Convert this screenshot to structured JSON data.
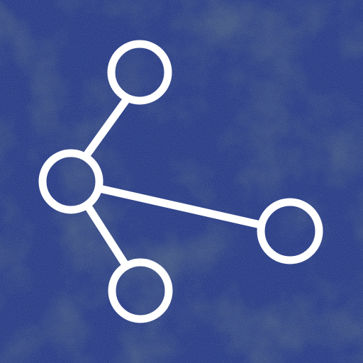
{
  "icon": {
    "name": "share-icon",
    "description_label": "",
    "background_color": "#2c3f86",
    "texture_dark_color": "#101a3d",
    "texture_light_color": "#4a62b8",
    "glyph_color": "#ffffff"
  }
}
